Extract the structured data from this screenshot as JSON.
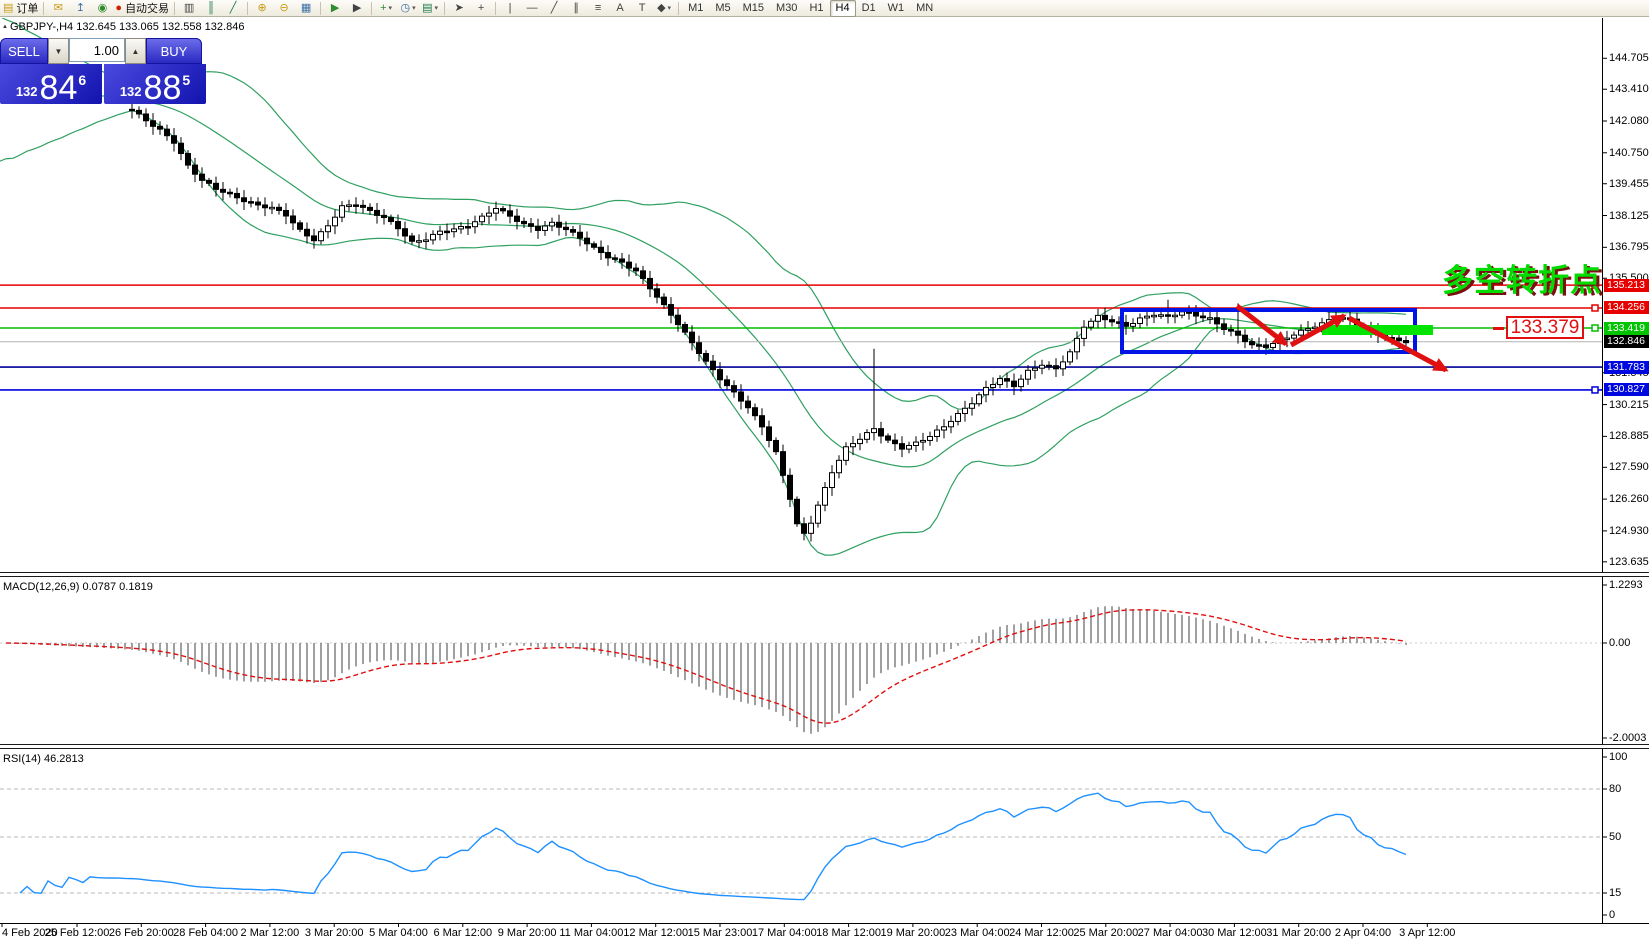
{
  "toolbar": {
    "order_label": "订单",
    "autotrade_label": "自动交易",
    "items": [
      {
        "t": "btn",
        "name": "new-order-button",
        "icon": "new-order-icon",
        "label": "order_label"
      },
      {
        "t": "sep"
      },
      {
        "t": "btn",
        "name": "mail-button",
        "icon": "mail-icon"
      },
      {
        "t": "btn",
        "name": "publish-button",
        "icon": "upload-icon"
      },
      {
        "t": "btn",
        "name": "signals-button",
        "icon": "signal-icon"
      },
      {
        "t": "btn",
        "name": "autotrading-button",
        "icon": "autotrade-icon",
        "label": "autotrade_label"
      },
      {
        "t": "sep"
      },
      {
        "t": "btn",
        "name": "bar-chart-button",
        "icon": "bar-chart-icon"
      },
      {
        "t": "btn",
        "name": "candlestick-chart-button",
        "icon": "candlestick-icon"
      },
      {
        "t": "btn",
        "name": "line-chart-button",
        "icon": "line-chart-icon"
      },
      {
        "t": "sep"
      },
      {
        "t": "btn",
        "name": "zoom-in-button",
        "icon": "zoom-in-icon"
      },
      {
        "t": "btn",
        "name": "zoom-out-button",
        "icon": "zoom-out-icon"
      },
      {
        "t": "btn",
        "name": "tile-windows-button",
        "icon": "tile-windows-icon"
      },
      {
        "t": "sep"
      },
      {
        "t": "btn",
        "name": "auto-scroll-button",
        "icon": "auto-scroll-icon"
      },
      {
        "t": "btn",
        "name": "chart-shift-button",
        "icon": "chart-shift-icon"
      },
      {
        "t": "sep"
      },
      {
        "t": "btn",
        "name": "indicators-button",
        "icon": "indicators-icon",
        "dd": true
      },
      {
        "t": "btn",
        "name": "periods-button",
        "icon": "clock-icon",
        "dd": true
      },
      {
        "t": "btn",
        "name": "templates-button",
        "icon": "template-icon",
        "dd": true
      },
      {
        "t": "sep"
      },
      {
        "t": "btn",
        "name": "cursor-button",
        "icon": "cursor-icon"
      },
      {
        "t": "btn",
        "name": "crosshair-button",
        "icon": "crosshair-icon"
      },
      {
        "t": "sep"
      },
      {
        "t": "btn",
        "name": "vertical-line-button",
        "icon": "vline-icon"
      },
      {
        "t": "btn",
        "name": "horizontal-line-button",
        "icon": "hline-icon"
      },
      {
        "t": "btn",
        "name": "trendline-button",
        "icon": "trendline-icon"
      },
      {
        "t": "btn",
        "name": "channel-button",
        "icon": "channel-icon"
      },
      {
        "t": "btn",
        "name": "fibonacci-button",
        "icon": "fibonacci-icon"
      },
      {
        "t": "btn",
        "name": "text-button",
        "icon": "text-icon"
      },
      {
        "t": "btn",
        "name": "text-label-button",
        "icon": "label-icon"
      },
      {
        "t": "btn",
        "name": "shapes-button",
        "icon": "shapes-icon",
        "dd": true
      },
      {
        "t": "sep"
      }
    ],
    "timeframes": [
      "M1",
      "M5",
      "M15",
      "M30",
      "H1",
      "H4",
      "D1",
      "W1",
      "MN"
    ],
    "active_timeframe": "H4"
  },
  "quote_panel": {
    "sell_label": "SELL",
    "buy_label": "BUY",
    "volume": "1.00",
    "sell_price": {
      "small": "132",
      "big": "84",
      "sup": "6"
    },
    "buy_price": {
      "small": "132",
      "big": "88",
      "sup": "5"
    }
  },
  "chart": {
    "title": "GBPJPY-,H4  132.645 133.065 132.558 132.846",
    "annotation_text": "多空转折点",
    "price_callout": "133.379",
    "current_price": {
      "value": "132.846",
      "price": 132.846,
      "line_color": "#B4B4B4",
      "label_bg": "#000000"
    }
  },
  "macd": {
    "label": "MACD(12,26,9) 0.0787 0.1819"
  },
  "rsi": {
    "label": "RSI(14) 46.2813"
  },
  "chart_data": {
    "type": "candlestick",
    "symbol": "GBPJPY-",
    "timeframe": "H4",
    "window_ohlc": {
      "open": 132.645,
      "high": 133.065,
      "low": 132.558,
      "close": 132.846
    },
    "bid": 132.846,
    "ask": 132.885,
    "y_axis_ticks": [
      "144.705",
      "143.410",
      "142.080",
      "140.750",
      "139.455",
      "138.125",
      "136.795",
      "135.500",
      "131.545",
      "130.215",
      "128.885",
      "127.590",
      "126.260",
      "124.930",
      "123.635"
    ],
    "dates": [
      "4 Feb 2020",
      "25 Feb 12:00",
      "26 Feb 20:00",
      "28 Feb 04:00",
      "2 Mar 12:00",
      "3 Mar 20:00",
      "5 Mar 04:00",
      "6 Mar 12:00",
      "9 Mar 20:00",
      "11 Mar 04:00",
      "12 Mar 12:00",
      "15 Mar 23:00",
      "17 Mar 04:00",
      "18 Mar 12:00",
      "19 Mar 20:00",
      "23 Mar 04:00",
      "24 Mar 12:00",
      "25 Mar 20:00",
      "27 Mar 04:00",
      "30 Mar 12:00",
      "31 Mar 20:00",
      "2 Apr 04:00",
      "3 Apr 12:00"
    ],
    "bars": 202,
    "visible_from": 19,
    "close_anchors": [
      [
        0,
        143.4
      ],
      [
        8,
        143.1
      ],
      [
        14,
        142.9
      ],
      [
        18,
        142.6
      ],
      [
        19,
        142.55
      ],
      [
        21,
        142.1
      ],
      [
        23,
        141.7
      ],
      [
        25,
        141.2
      ],
      [
        27,
        140.2
      ],
      [
        29,
        139.6
      ],
      [
        31,
        139.25
      ],
      [
        33,
        139.0
      ],
      [
        35,
        138.75
      ],
      [
        37,
        138.55
      ],
      [
        39,
        138.45
      ],
      [
        41,
        138.15
      ],
      [
        43,
        137.5
      ],
      [
        45,
        137.1
      ],
      [
        47,
        137.7
      ],
      [
        49,
        138.5
      ],
      [
        51,
        138.6
      ],
      [
        53,
        138.3
      ],
      [
        55,
        138.05
      ],
      [
        57,
        137.6
      ],
      [
        59,
        137.0
      ],
      [
        61,
        137.15
      ],
      [
        63,
        137.45
      ],
      [
        65,
        137.55
      ],
      [
        67,
        137.7
      ],
      [
        69,
        138.05
      ],
      [
        71,
        138.45
      ],
      [
        73,
        138.1
      ],
      [
        75,
        137.75
      ],
      [
        77,
        137.55
      ],
      [
        79,
        137.8
      ],
      [
        81,
        137.55
      ],
      [
        83,
        137.2
      ],
      [
        85,
        136.75
      ],
      [
        87,
        136.4
      ],
      [
        89,
        136.15
      ],
      [
        91,
        135.8
      ],
      [
        93,
        135.1
      ],
      [
        95,
        134.35
      ],
      [
        97,
        133.6
      ],
      [
        99,
        132.8
      ],
      [
        101,
        132.0
      ],
      [
        103,
        131.3
      ],
      [
        105,
        130.7
      ],
      [
        107,
        130.1
      ],
      [
        109,
        129.3
      ],
      [
        111,
        128.2
      ],
      [
        113,
        126.3
      ],
      [
        114,
        125.2
      ],
      [
        115,
        124.8
      ],
      [
        116,
        125.3
      ],
      [
        117,
        126.0
      ],
      [
        119,
        127.4
      ],
      [
        121,
        128.4
      ],
      [
        123,
        128.8
      ],
      [
        125,
        129.2
      ],
      [
        127,
        128.7
      ],
      [
        129,
        128.4
      ],
      [
        131,
        128.6
      ],
      [
        133,
        128.9
      ],
      [
        135,
        129.3
      ],
      [
        137,
        129.8
      ],
      [
        139,
        130.3
      ],
      [
        141,
        130.9
      ],
      [
        143,
        131.3
      ],
      [
        145,
        131.0
      ],
      [
        147,
        131.6
      ],
      [
        149,
        131.9
      ],
      [
        151,
        131.7
      ],
      [
        153,
        132.4
      ],
      [
        155,
        133.5
      ],
      [
        157,
        133.9
      ],
      [
        159,
        133.7
      ],
      [
        161,
        133.5
      ],
      [
        163,
        133.8
      ],
      [
        165,
        134.0
      ],
      [
        167,
        133.9
      ],
      [
        169,
        134.1
      ],
      [
        171,
        133.95
      ],
      [
        173,
        133.8
      ],
      [
        175,
        133.4
      ],
      [
        177,
        133.1
      ],
      [
        179,
        132.7
      ],
      [
        181,
        132.65
      ],
      [
        183,
        132.9
      ],
      [
        185,
        133.15
      ],
      [
        187,
        133.4
      ],
      [
        189,
        133.6
      ],
      [
        191,
        133.9
      ],
      [
        193,
        133.75
      ],
      [
        195,
        133.4
      ],
      [
        197,
        133.15
      ],
      [
        199,
        132.95
      ],
      [
        201,
        132.85
      ]
    ],
    "spikes": [
      {
        "j": 125,
        "high": 132.55
      },
      {
        "j": 167,
        "high": 134.6
      },
      {
        "j": 177,
        "high": 134.45
      }
    ],
    "indicators": {
      "bollinger": {
        "period": 20,
        "deviation": 2,
        "color": "#2FA060"
      },
      "macd": {
        "fast": 12,
        "slow": 26,
        "signal": 9,
        "current_macd": 0.0787,
        "current_signal": 0.1819,
        "scale_ticks": [
          "1.2293",
          "0.00",
          "-2.0003"
        ],
        "bar_color": "#787878",
        "signal_color": "#E01010"
      },
      "rsi": {
        "period": 14,
        "current": 46.2813,
        "levels": [
          80,
          50,
          15
        ],
        "scale_ticks": [
          "100",
          "80",
          "50",
          "15",
          "0"
        ],
        "line_color": "#1E90FF"
      }
    },
    "horizontal_lines": [
      {
        "value": "135.213",
        "price": 135.213,
        "color": "#E60000",
        "label_bg": "#E60000",
        "square": true
      },
      {
        "value": "134.256",
        "price": 134.256,
        "color": "#E60000",
        "label_bg": "#E60000",
        "square": true
      },
      {
        "value": "133.419",
        "price": 133.419,
        "color": "#00BE00",
        "label_bg": "#00C400",
        "square": true
      },
      {
        "value": "131.783",
        "price": 131.783,
        "color": "#000096",
        "label_bg": "#0008E0",
        "square": false
      },
      {
        "value": "130.827",
        "price": 130.827,
        "color": "#0000E0",
        "label_bg": "#0008E0",
        "square": true
      }
    ],
    "drawings": {
      "rectangle_box": {
        "x1_price_time": "consolidation box",
        "color": "#0014E6"
      },
      "highlight_bar": {
        "color": "#00E400",
        "near_price": 133.419
      },
      "trend_arrow": {
        "color": "#E01010",
        "pattern": "down-up-down zigzag"
      },
      "annotation_text": "多空转折点",
      "price_label": "133.379"
    }
  }
}
